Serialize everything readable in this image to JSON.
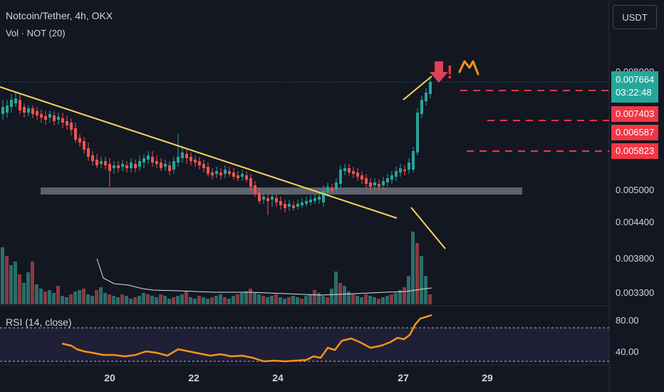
{
  "header": {
    "symbol_line": "Notcoin/Tether, 4h, OKX",
    "volume_label": "Vol · NOT (20)"
  },
  "currency_button": "USDT",
  "price_axis": {
    "labels": [
      "0.008000",
      "0.005000",
      "0.004400",
      "0.003800",
      "0.003300"
    ],
    "current_price": "0.007664",
    "countdown": "03:22:48",
    "target_levels": [
      "0.007403",
      "0.006587",
      "0.005823"
    ]
  },
  "rsi": {
    "label": "RSI (14, close)",
    "axis_labels": [
      "80.00",
      "40.00"
    ]
  },
  "time_axis": {
    "labels": [
      "20",
      "22",
      "24",
      "27",
      "29"
    ]
  },
  "colors": {
    "background": "#131722",
    "bull": "#26a69a",
    "bear": "#ef5350",
    "trendline": "#f9d55b",
    "rsi_line": "#f7931a",
    "target_line": "#f23645",
    "support_zone": "#9aa0a8"
  },
  "annotations": {
    "exclamation": "!",
    "arrow_down_icon": "arrow-down-icon",
    "zigzag_icon": "zigzag-icon"
  }
}
